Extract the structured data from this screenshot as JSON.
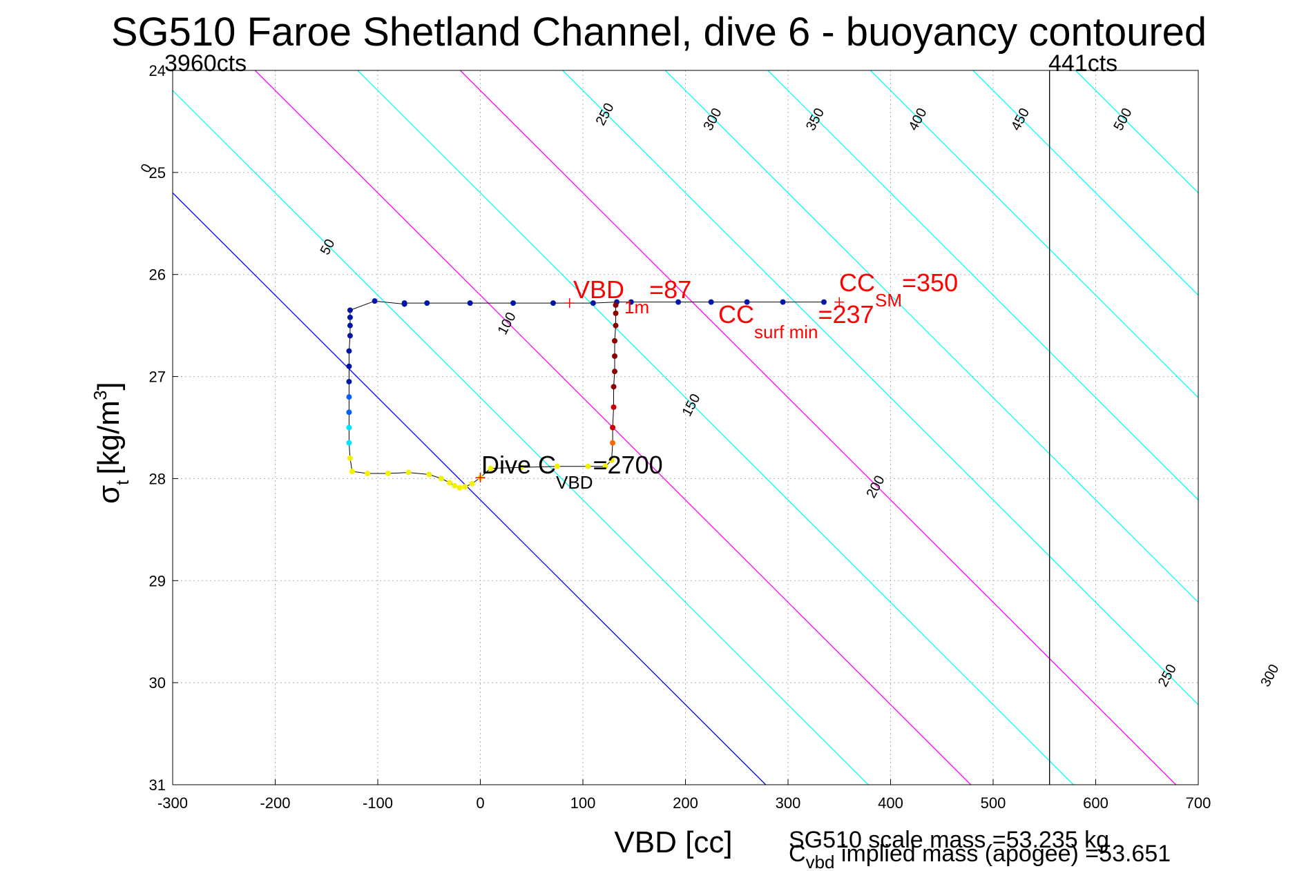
{
  "chart_data": {
    "type": "scatter",
    "title": "SG510 Faroe Shetland Channel, dive 6 - buoyancy contoured",
    "xlabel": "VBD [cc]",
    "ylabel": {
      "main": "σ",
      "sub": "t",
      "unit": "[kg/m",
      "sup": "3",
      "close": "]"
    },
    "xlim": [
      -300,
      700
    ],
    "ylim": [
      24,
      31
    ],
    "y_reversed": true,
    "grid": true,
    "xticks": [
      -300,
      -200,
      -100,
      0,
      100,
      200,
      300,
      400,
      500,
      600,
      700
    ],
    "yticks": [
      24,
      25,
      26,
      27,
      28,
      29,
      30,
      31
    ],
    "contours": {
      "slope_vbd_per_sigma": 99.7,
      "levels": [
        {
          "level": 0,
          "color": "#0000ff"
        },
        {
          "level": 50,
          "color": "#00ffff"
        },
        {
          "level": 100,
          "color": "#ff00ff"
        },
        {
          "level": 150,
          "color": "#00ffff"
        },
        {
          "level": 200,
          "color": "#ff00ff"
        },
        {
          "level": 250,
          "color": "#00ffff"
        },
        {
          "level": 300,
          "color": "#00ffff"
        },
        {
          "level": 350,
          "color": "#00ffff"
        },
        {
          "level": 400,
          "color": "#00ffff"
        },
        {
          "level": 450,
          "color": "#00ffff"
        },
        {
          "level": 500,
          "color": "#00ffff"
        }
      ],
      "labels": [
        {
          "text": "0",
          "sigma": 24.98
        },
        {
          "text": "50",
          "sigma": 25.75
        },
        {
          "text": "100",
          "sigma": 26.5
        },
        {
          "text": "150",
          "sigma": 27.3
        },
        {
          "text": "200",
          "sigma": 28.1
        },
        {
          "text": "250",
          "sigma": 24.45
        },
        {
          "text": "300",
          "sigma": 24.5
        },
        {
          "text": "350",
          "sigma": 24.5
        },
        {
          "text": "400",
          "sigma": 24.5
        },
        {
          "text": "450",
          "sigma": 24.5
        },
        {
          "text": "500",
          "sigma": 24.5
        },
        {
          "text": "250",
          "sigma": 29.95
        },
        {
          "text": "300",
          "sigma": 29.95
        },
        {
          "text": "350",
          "sigma": 29.95
        },
        {
          "text": "400",
          "sigma": 29.95
        },
        {
          "text": "450",
          "sigma": 29.95
        },
        {
          "text": "500",
          "sigma": 29.95
        }
      ]
    },
    "vline": {
      "x": 555,
      "label_left": "3960cts",
      "label_right": "441cts"
    },
    "dive_path": {
      "descent": [
        [
          335,
          26.27
        ],
        [
          295,
          26.27
        ],
        [
          260,
          26.27
        ],
        [
          225,
          26.27
        ],
        [
          193,
          26.27
        ],
        [
          147,
          26.27
        ],
        [
          133,
          26.27
        ],
        [
          110,
          26.28
        ],
        [
          71,
          26.28
        ],
        [
          32,
          26.28
        ],
        [
          -10,
          26.28
        ],
        [
          -52,
          26.28
        ],
        [
          -74,
          26.28
        ],
        [
          -74,
          26.29
        ],
        [
          -103,
          26.26
        ],
        [
          -127,
          26.35
        ],
        [
          -127,
          26.42
        ],
        [
          -127,
          26.5
        ],
        [
          -127,
          26.6
        ],
        [
          -128,
          26.75
        ],
        [
          -128,
          26.9
        ],
        [
          -128,
          27.05
        ],
        [
          -128,
          27.2
        ],
        [
          -128,
          27.35
        ],
        [
          -128,
          27.5
        ],
        [
          -128,
          27.65
        ],
        [
          -127,
          27.8
        ],
        [
          -125,
          27.93
        ],
        [
          -110,
          27.95
        ],
        [
          -90,
          27.95
        ],
        [
          -70,
          27.94
        ],
        [
          -50,
          27.96
        ],
        [
          -38,
          28.0
        ],
        [
          -30,
          28.04
        ],
        [
          -25,
          28.07
        ],
        [
          -20,
          28.09
        ],
        [
          -15,
          28.08
        ],
        [
          -8,
          28.05
        ],
        [
          0,
          27.99
        ]
      ],
      "ascent": [
        [
          0,
          27.99
        ],
        [
          10,
          27.9
        ],
        [
          40,
          27.89
        ],
        [
          75,
          27.88
        ],
        [
          105,
          27.88
        ],
        [
          122,
          27.88
        ],
        [
          128,
          27.82
        ],
        [
          129,
          27.65
        ],
        [
          129,
          27.5
        ],
        [
          130,
          27.3
        ],
        [
          130,
          27.1
        ],
        [
          131,
          26.95
        ],
        [
          131,
          26.8
        ],
        [
          131,
          26.65
        ],
        [
          132,
          26.5
        ],
        [
          132,
          26.38
        ],
        [
          132,
          26.3
        ]
      ],
      "colors": {
        "near_surface": "#0016a5",
        "mid_depth": "#00e5ff",
        "deep": "#f2f200",
        "ascent_mid": "#ff6600",
        "ascent_near_surface": "#8b0000"
      }
    },
    "markers": [
      {
        "name": "vbd-1m",
        "x": 87,
        "y": 26.28,
        "color": "#ff0000"
      },
      {
        "name": "cc-sm",
        "x": 350,
        "y": 26.27,
        "color": "#ff0000"
      },
      {
        "name": "dive-cvbd",
        "x": 0,
        "y": 27.99,
        "color": "#ff0000"
      }
    ],
    "annotations": {
      "vbd_1m": {
        "main": "VBD",
        "sub": "1m",
        "value": "=87"
      },
      "cc_sm": {
        "main": "CC",
        "sub": "SM",
        "value": "=350"
      },
      "cc_surf_min": {
        "main": "CC",
        "sub": "surf min",
        "value": "=237"
      },
      "dive_cvbd": {
        "main": "Dive C",
        "sub": "VBD",
        "value": "=2700"
      }
    },
    "footer": {
      "scale_mass": "SG510 scale mass =53.235 kg",
      "implied_main": "C",
      "implied_sub": "vbd",
      "implied_rest": " implied mass (apogee) =53.651"
    }
  }
}
